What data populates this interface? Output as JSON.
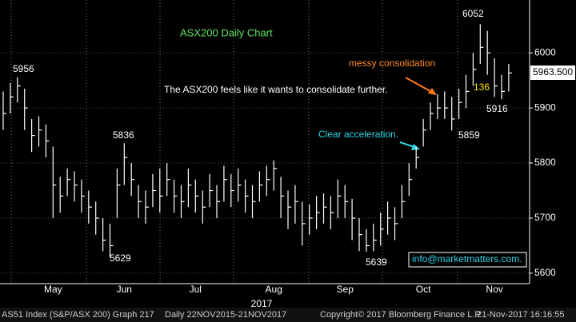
{
  "chart_data": {
    "type": "ohlc",
    "title": "ASX200 Daily Chart",
    "categories": [
      null,
      null,
      null,
      null,
      null,
      null,
      null,
      "May",
      null,
      null,
      null,
      null,
      null,
      null,
      null,
      null,
      null,
      "Jun",
      null,
      null,
      null,
      null,
      null,
      null,
      null,
      null,
      null,
      "Jul",
      null,
      null,
      null,
      null,
      null,
      null,
      null,
      null,
      null,
      null,
      "Aug",
      null,
      null,
      null,
      null,
      null,
      null,
      null,
      null,
      null,
      "Sep",
      null,
      null,
      null,
      null,
      null,
      null,
      null,
      null,
      null,
      null,
      "Oct",
      null,
      null,
      null,
      null,
      null,
      null,
      null,
      null,
      null,
      "Nov",
      null,
      null
    ],
    "year_label": "2017",
    "high": [
      5930,
      5945,
      5956,
      5935,
      5880,
      5885,
      5870,
      5830,
      5775,
      5790,
      5785,
      5770,
      5750,
      5730,
      5700,
      5690,
      5790,
      5836,
      5800,
      5760,
      5750,
      5780,
      5790,
      5800,
      5770,
      5760,
      5790,
      5770,
      5750,
      5780,
      5760,
      5795,
      5780,
      5790,
      5770,
      5760,
      5785,
      5795,
      5805,
      5775,
      5750,
      5760,
      5730,
      5725,
      5740,
      5745,
      5740,
      5770,
      5760,
      5735,
      5700,
      5680,
      5690,
      5710,
      5730,
      5720,
      5760,
      5800,
      5830,
      5880,
      5910,
      5925,
      5930,
      5920,
      5935,
      5960,
      6000,
      6052,
      6040,
      5990,
      5960,
      5980
    ],
    "low": [
      5860,
      5890,
      5910,
      5860,
      5820,
      5830,
      5810,
      5700,
      5710,
      5740,
      5730,
      5710,
      5690,
      5670,
      5640,
      5629,
      5700,
      5760,
      5740,
      5700,
      5690,
      5720,
      5710,
      5740,
      5710,
      5700,
      5720,
      5710,
      5690,
      5720,
      5700,
      5730,
      5720,
      5730,
      5710,
      5700,
      5730,
      5740,
      5750,
      5700,
      5680,
      5690,
      5650,
      5670,
      5680,
      5690,
      5680,
      5700,
      5700,
      5660,
      5640,
      5639,
      5640,
      5650,
      5670,
      5660,
      5700,
      5740,
      5790,
      5830,
      5860,
      5880,
      5880,
      5859,
      5880,
      5900,
      5940,
      5980,
      5960,
      5920,
      5916,
      5930
    ],
    "close": [
      5890,
      5920,
      5940,
      5900,
      5850,
      5860,
      5840,
      5760,
      5740,
      5770,
      5760,
      5740,
      5720,
      5700,
      5660,
      5650,
      5760,
      5810,
      5770,
      5730,
      5720,
      5750,
      5740,
      5770,
      5740,
      5730,
      5760,
      5740,
      5720,
      5750,
      5730,
      5770,
      5750,
      5760,
      5740,
      5730,
      5760,
      5770,
      5790,
      5740,
      5720,
      5730,
      5690,
      5700,
      5710,
      5720,
      5710,
      5740,
      5730,
      5700,
      5670,
      5650,
      5660,
      5680,
      5700,
      5690,
      5730,
      5770,
      5810,
      5860,
      5890,
      5900,
      5900,
      5880,
      5910,
      5930,
      5970,
      6010,
      6000,
      5940,
      5930,
      5963.5
    ],
    "last_label": "5963.500",
    "ylim": [
      5581,
      6096
    ],
    "yticks": [
      5600,
      5700,
      5800,
      5900,
      6000
    ],
    "grid": true,
    "color": "#ffffff",
    "annotations": [
      "5956",
      "5836",
      "5629",
      "5639",
      "5859",
      "6052",
      "5916",
      "136",
      "The ASX200 feels like it wants to consolidate further.",
      "messy consolidation",
      "Clear acceleration.",
      "info@marketmatters.com."
    ],
    "footer": [
      "AS51 Index (S&P/ASX 200) Graph 217",
      "Daily 22NOV2015-21NOV2017",
      "Copyright© 2017 Bloomberg Finance L.P.",
      "21-Nov-2017 16:16:55"
    ]
  }
}
